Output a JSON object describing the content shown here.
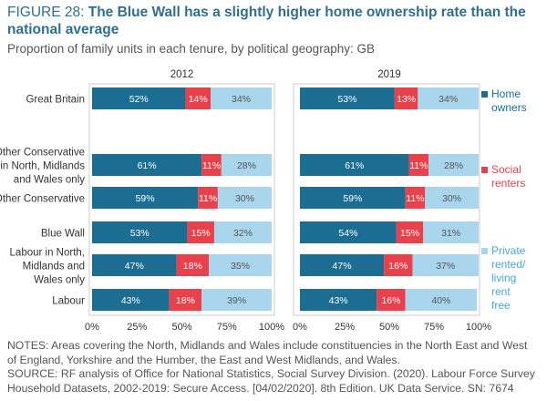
{
  "title": {
    "figure_label": "FIGURE 28:",
    "headline": "The Blue Wall has a slightly higher home ownership rate than the national average"
  },
  "subtitle": "Proportion of family units in each tenure, by political geography: GB",
  "colors": {
    "home_owners": "#1b6e91",
    "social_renters": "#e8414b",
    "private_renters": "#a9d6ec",
    "axis": "#333333",
    "grid": "#cccccc",
    "label_dark": "#ffffff",
    "label_light": "#555555"
  },
  "chart_data": {
    "type": "bar",
    "stacked": true,
    "orientation": "horizontal",
    "categories": [
      [
        "Great Britain"
      ],
      [
        "Other Conservative",
        "in North, Midlands",
        "and Wales only"
      ],
      [
        "Other Conservative"
      ],
      [
        "Blue Wall"
      ],
      [
        "Labour in North,",
        "Midlands and",
        "Wales only"
      ],
      [
        "Labour"
      ]
    ],
    "panels": [
      {
        "title": "2012",
        "series": [
          {
            "name": "Home owners",
            "values": [
              52,
              61,
              59,
              53,
              47,
              43
            ],
            "labels": [
              "52%",
              "61%",
              "59%",
              "53%",
              "47%",
              "43%"
            ]
          },
          {
            "name": "Social renters",
            "values": [
              14,
              11,
              11,
              15,
              18,
              18
            ],
            "labels": [
              "14%",
              "11%",
              "11%",
              "15%",
              "18%",
              "18%"
            ]
          },
          {
            "name": "Private rented/ living rent free",
            "values": [
              34,
              28,
              30,
              32,
              35,
              39
            ],
            "labels": [
              "34%",
              "28%",
              "30%",
              "32%",
              "35%",
              "39%"
            ]
          }
        ]
      },
      {
        "title": "2019",
        "series": [
          {
            "name": "Home owners",
            "values": [
              53,
              61,
              59,
              54,
              47,
              43
            ],
            "labels": [
              "53%",
              "61%",
              "59%",
              "54%",
              "47%",
              "43%"
            ]
          },
          {
            "name": "Social renters",
            "values": [
              13,
              11,
              11,
              15,
              16,
              16
            ],
            "labels": [
              "13%",
              "11%",
              "11%",
              "15%",
              "16%",
              "16%"
            ]
          },
          {
            "name": "Private rented/ living rent free",
            "values": [
              34,
              28,
              30,
              31,
              37,
              40
            ],
            "labels": [
              "34%",
              "28%",
              "30%",
              "31%",
              "37%",
              "40%"
            ]
          }
        ]
      }
    ],
    "xlim": [
      0,
      100
    ],
    "xticks": [
      "0%",
      "25%",
      "50%",
      "75%",
      "100%"
    ],
    "legend": [
      {
        "series": 0,
        "lines": [
          "Home",
          "owners"
        ]
      },
      {
        "series": 1,
        "lines": [
          "Social",
          "renters"
        ]
      },
      {
        "series": 2,
        "lines": [
          "Private",
          "rented/",
          "living",
          "rent",
          "free"
        ]
      }
    ],
    "legend_position": "right"
  },
  "notes": [
    "NOTES: Areas covering the North, Midlands and Wales include constituencies in the North East and West",
    "of England, Yorkshire and the Humber, the East and West Midlands, and Wales.",
    "SOURCE: RF analysis of Office for National Statistics, Social Survey Division. (2020). Labour Force Survey",
    "Household Datasets, 2002-2019: Secure Access. [04/02/2020]. 8th Edition. UK Data Service. SN: 7674"
  ]
}
